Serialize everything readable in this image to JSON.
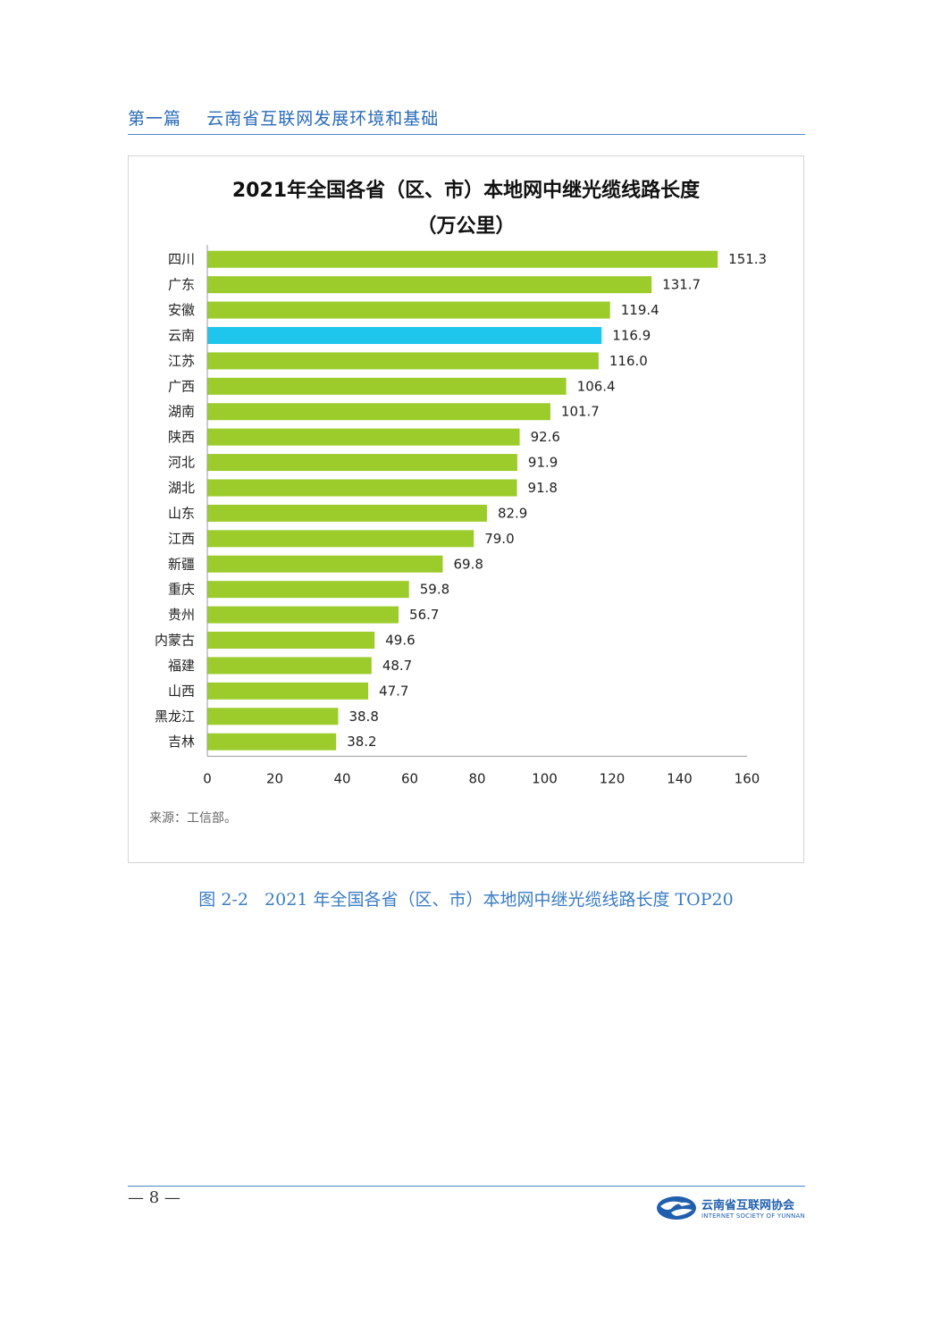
{
  "header": {
    "section": "第一篇",
    "title": "云南省互联网发展环境和基础"
  },
  "chart_data": {
    "type": "bar",
    "orientation": "horizontal",
    "title_line1": "2021年全国各省（区、市）本地网中继光缆线路长度",
    "title_line2": "（万公里）",
    "categories": [
      "四川",
      "广东",
      "安徽",
      "云南",
      "江苏",
      "广西",
      "湖南",
      "陕西",
      "河北",
      "湖北",
      "山东",
      "江西",
      "新疆",
      "重庆",
      "贵州",
      "内蒙古",
      "福建",
      "山西",
      "黑龙江",
      "吉林"
    ],
    "values": [
      151.3,
      131.7,
      119.4,
      116.9,
      116.0,
      106.4,
      101.7,
      92.6,
      91.9,
      91.8,
      82.9,
      79.0,
      69.8,
      59.8,
      56.7,
      49.6,
      48.7,
      47.7,
      38.8,
      38.2
    ],
    "value_labels": [
      "151.3",
      "131.7",
      "119.4",
      "116.9",
      "116.0",
      "106.4",
      "101.7",
      "92.6",
      "91.9",
      "91.8",
      "82.9",
      "79.0",
      "69.8",
      "59.8",
      "56.7",
      "49.6",
      "48.7",
      "47.7",
      "38.8",
      "38.2"
    ],
    "highlight_category": "云南",
    "xlim": [
      0,
      160
    ],
    "x_ticks": [
      0,
      20,
      40,
      60,
      80,
      100,
      120,
      140,
      160
    ],
    "grid": false,
    "colors": {
      "bar": "#9ccc2c",
      "highlight": "#1ec6ee",
      "axis": "#999999",
      "text": "#222222"
    }
  },
  "source": "来源：工信部。",
  "caption": "图 2-2   2021 年全国各省（区、市）本地网中继光缆线路长度 TOP20",
  "footer": {
    "page_number": "8",
    "org_name_cn": "云南省互联网协会",
    "org_name_en": "INTERNET SOCIETY OF YUNNAN"
  }
}
